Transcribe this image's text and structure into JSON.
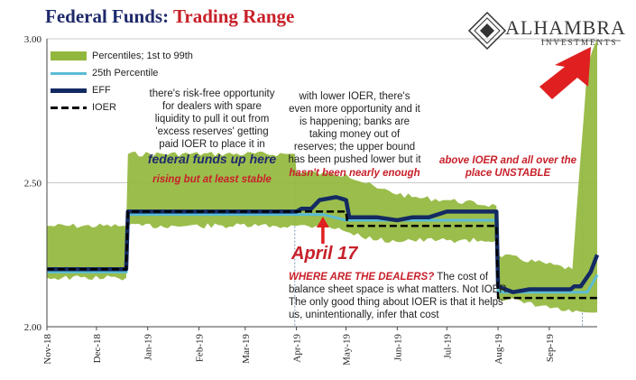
{
  "header": {
    "title_part1": "Federal Funds: ",
    "title_part2": "Trading Range",
    "logo_name": "ALHAMBRA",
    "logo_sub": "INVESTMENTS"
  },
  "colors": {
    "band": "#92b73d",
    "p25": "#5bbcd4",
    "eff": "#132a63",
    "ioer": "#000000",
    "accent_red": "#e02020",
    "grid": "#c8c8c8"
  },
  "annotations": {
    "a1": "there's risk-free opportunity for dealers with spare liquidity to pull it out from 'excess reserves' getting paid IOER to place it in",
    "a1_blue": "federal funds up here",
    "a1_red": "rising but at least stable",
    "a2": "with lower IOER, there's even more opportunity and it is happening; banks are taking money out of reserves; the upper bound has been pushed lower but it",
    "a2_red": "hasn't been nearly enough",
    "a3_red": "above IOER and all over the place UNSTABLE",
    "april": "April 17",
    "dealers_red": "WHERE ARE THE DEALERS?",
    "dealers_text": "The cost of balance sheet space is what matters. Not IOER. The only good thing about IOER is that it helps us, unintentionally, infer that cost"
  },
  "chart_data": {
    "type": "line",
    "title": "Federal Funds: Trading Range",
    "ylim": [
      2.0,
      3.0
    ],
    "yticks": [
      "2.00",
      "2.50",
      "3.00"
    ],
    "xlim": [
      "2018-11-01",
      "2019-09-30"
    ],
    "xticks": [
      {
        "date": "2018-11-01",
        "label": "Nov-18"
      },
      {
        "date": "2018-12-01",
        "label": "Dec-18"
      },
      {
        "date": "2019-01-01",
        "label": "Jan-19"
      },
      {
        "date": "2019-02-01",
        "label": "Feb-19"
      },
      {
        "date": "2019-03-01",
        "label": "Mar-19"
      },
      {
        "date": "2019-04-01",
        "label": "Apr-19"
      },
      {
        "date": "2019-05-01",
        "label": "May-19"
      },
      {
        "date": "2019-06-01",
        "label": "Jun-19"
      },
      {
        "date": "2019-07-01",
        "label": "Jul-19"
      },
      {
        "date": "2019-08-01",
        "label": "Aug-19"
      },
      {
        "date": "2019-09-01",
        "label": "Sep-19"
      }
    ],
    "grid": true,
    "legend_position": "top-left",
    "series": [
      {
        "name": "Percentiles; 1st to 99th",
        "kind": "band",
        "points": [
          [
            "2018-11-01",
            2.17,
            2.35
          ],
          [
            "2018-12-19",
            2.17,
            2.35
          ],
          [
            "2018-12-20",
            2.35,
            2.6
          ],
          [
            "2019-03-31",
            2.35,
            2.6
          ],
          [
            "2019-04-01",
            2.35,
            2.54
          ],
          [
            "2019-04-20",
            2.35,
            2.53
          ],
          [
            "2019-05-01",
            2.33,
            2.53
          ],
          [
            "2019-05-20",
            2.3,
            2.48
          ],
          [
            "2019-06-10",
            2.3,
            2.45
          ],
          [
            "2019-07-01",
            2.3,
            2.44
          ],
          [
            "2019-07-31",
            2.3,
            2.42
          ],
          [
            "2019-08-01",
            2.1,
            2.25
          ],
          [
            "2019-09-15",
            2.05,
            2.2
          ],
          [
            "2019-09-24",
            2.05,
            2.9
          ],
          [
            "2019-09-30",
            2.05,
            3.0
          ]
        ]
      },
      {
        "name": "25th Percentile",
        "points": [
          [
            "2018-11-01",
            2.19
          ],
          [
            "2018-12-19",
            2.19
          ],
          [
            "2018-12-20",
            2.39
          ],
          [
            "2019-04-17",
            2.39
          ],
          [
            "2019-05-01",
            2.37
          ],
          [
            "2019-07-31",
            2.37
          ],
          [
            "2019-08-01",
            2.12
          ],
          [
            "2019-09-24",
            2.12
          ],
          [
            "2019-09-30",
            2.18
          ]
        ]
      },
      {
        "name": "EFF",
        "points": [
          [
            "2018-11-01",
            2.2
          ],
          [
            "2018-12-19",
            2.2
          ],
          [
            "2018-12-20",
            2.4
          ],
          [
            "2019-04-01",
            2.4
          ],
          [
            "2019-04-04",
            2.41
          ],
          [
            "2019-04-10",
            2.41
          ],
          [
            "2019-04-15",
            2.44
          ],
          [
            "2019-04-25",
            2.45
          ],
          [
            "2019-05-01",
            2.44
          ],
          [
            "2019-05-03",
            2.38
          ],
          [
            "2019-05-20",
            2.38
          ],
          [
            "2019-06-01",
            2.37
          ],
          [
            "2019-06-10",
            2.38
          ],
          [
            "2019-06-20",
            2.38
          ],
          [
            "2019-07-01",
            2.4
          ],
          [
            "2019-07-15",
            2.4
          ],
          [
            "2019-07-31",
            2.4
          ],
          [
            "2019-08-01",
            2.14
          ],
          [
            "2019-08-10",
            2.12
          ],
          [
            "2019-08-20",
            2.13
          ],
          [
            "2019-09-01",
            2.13
          ],
          [
            "2019-09-14",
            2.13
          ],
          [
            "2019-09-16",
            2.14
          ],
          [
            "2019-09-20",
            2.14
          ],
          [
            "2019-09-26",
            2.19
          ],
          [
            "2019-09-30",
            2.25
          ]
        ]
      },
      {
        "name": "IOER",
        "points": [
          [
            "2018-11-01",
            2.2
          ],
          [
            "2018-12-19",
            2.2
          ],
          [
            "2018-12-20",
            2.4
          ],
          [
            "2019-05-01",
            2.4
          ],
          [
            "2019-05-02",
            2.35
          ],
          [
            "2019-07-31",
            2.35
          ],
          [
            "2019-08-01",
            2.1
          ],
          [
            "2019-09-30",
            2.1
          ]
        ]
      }
    ],
    "markers": [
      {
        "date": "2019-04-17",
        "label": "April 17"
      }
    ]
  }
}
